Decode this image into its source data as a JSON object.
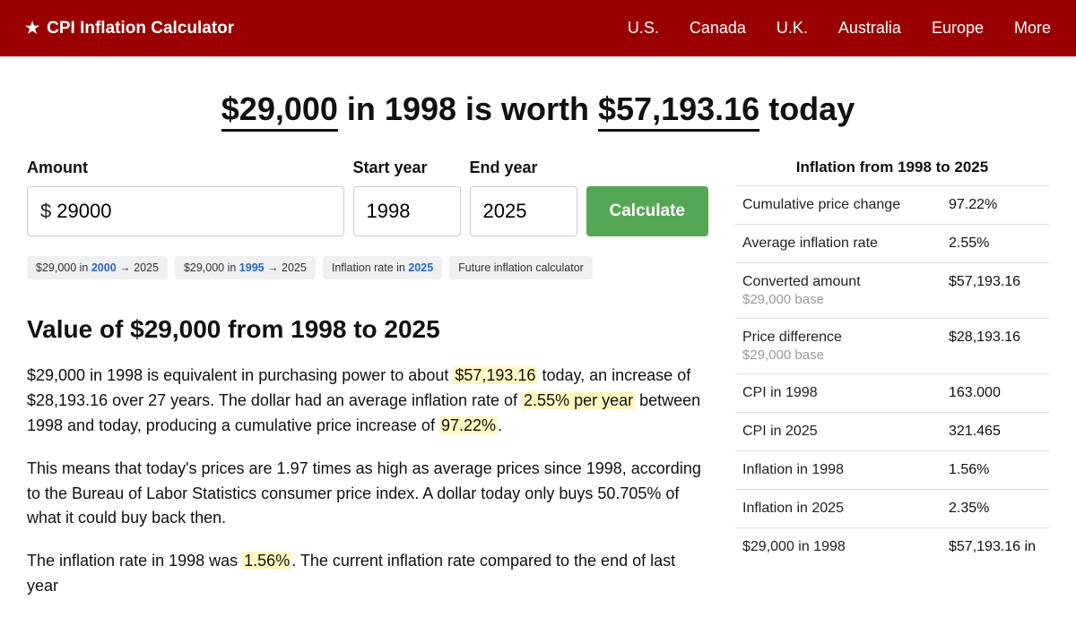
{
  "colors": {
    "brand_bg": "#9a0000",
    "button_bg": "#54a854",
    "highlight_bg": "#fff7c2",
    "link": "#2b66c4",
    "border": "#dddddd"
  },
  "nav": {
    "brand": "CPI Inflation Calculator",
    "links": [
      "U.S.",
      "Canada",
      "U.K.",
      "Australia",
      "Europe",
      "More"
    ]
  },
  "headline": {
    "amount_from": "$29,000",
    "mid1": " in 1998 is worth ",
    "amount_to": "$57,193.16",
    "tail": " today"
  },
  "form": {
    "amount_label": "Amount",
    "amount_prefix": "$",
    "amount_value": "29000",
    "start_label": "Start year",
    "start_value": "1998",
    "end_label": "End year",
    "end_value": "2025",
    "button": "Calculate"
  },
  "chips": [
    {
      "prefix": "$29,000 in ",
      "bold": "2000",
      "suffix": " → 2025"
    },
    {
      "prefix": "$29,000 in ",
      "bold": "1995",
      "suffix": " → 2025"
    },
    {
      "prefix": "Inflation rate in ",
      "bold": "2025",
      "suffix": ""
    },
    {
      "prefix": "Future inflation calculator",
      "bold": "",
      "suffix": ""
    }
  ],
  "section_heading": "Value of $29,000 from 1998 to 2025",
  "para1": {
    "a": "$29,000 in 1998 is equivalent in purchasing power to about ",
    "h1": "$57,193.16",
    "b": " today, an increase of $28,193.16 over 27 years. The dollar had an average inflation rate of ",
    "h2": "2.55% per year",
    "c": " between 1998 and today, producing a cumulative price increase of ",
    "h3": "97.22%",
    "d": "."
  },
  "para2": "This means that today's prices are 1.97 times as high as average prices since 1998, according to the Bureau of Labor Statistics consumer price index. A dollar today only buys 50.705% of what it could buy back then.",
  "para3": {
    "a": "The inflation rate in 1998 was ",
    "h1": "1.56%",
    "b": ". The current inflation rate compared to the end of last year"
  },
  "sidebar": {
    "title": "Inflation from 1998 to 2025",
    "rows": [
      {
        "label": "Cumulative price change",
        "sub": "",
        "value": "97.22%"
      },
      {
        "label": "Average inflation rate",
        "sub": "",
        "value": "2.55%"
      },
      {
        "label": "Converted amount",
        "sub": "$29,000 base",
        "value": "$57,193.16"
      },
      {
        "label": "Price difference",
        "sub": "$29,000 base",
        "value": "$28,193.16"
      },
      {
        "label": "CPI in 1998",
        "sub": "",
        "value": "163.000"
      },
      {
        "label": "CPI in 2025",
        "sub": "",
        "value": "321.465"
      },
      {
        "label": "Inflation in 1998",
        "sub": "",
        "value": "1.56%"
      },
      {
        "label": "Inflation in 2025",
        "sub": "",
        "value": "2.35%"
      },
      {
        "label": "$29,000 in 1998",
        "sub": "",
        "value": "$57,193.16 in"
      }
    ]
  }
}
